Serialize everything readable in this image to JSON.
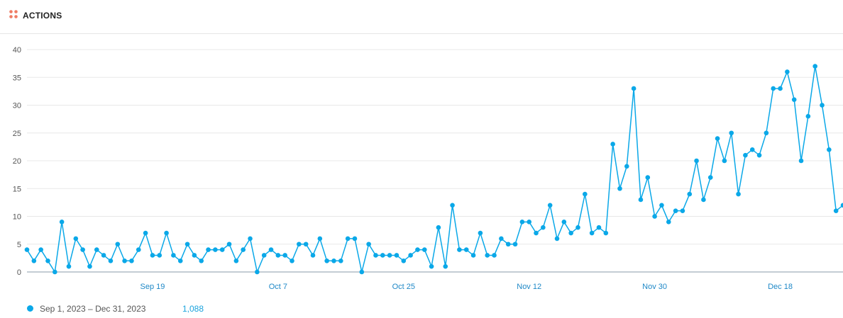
{
  "header": {
    "title": "ACTIONS",
    "icon": "grid-dots-icon",
    "icon_color": "#ef7b63"
  },
  "legend": {
    "label": "Sep 1, 2023 – Dec 31, 2023",
    "total": "1,088",
    "color": "#0aa8e8"
  },
  "chart_data": {
    "type": "line",
    "x_start": "2023-09-01",
    "x_end": "2023-12-31",
    "ylim": [
      0,
      40
    ],
    "yticks": [
      0,
      5,
      10,
      15,
      20,
      25,
      30,
      35,
      40
    ],
    "xticks": [
      {
        "date": "2023-09-19",
        "label": "Sep 19"
      },
      {
        "date": "2023-10-07",
        "label": "Oct 7"
      },
      {
        "date": "2023-10-25",
        "label": "Oct 25"
      },
      {
        "date": "2023-11-12",
        "label": "Nov 12"
      },
      {
        "date": "2023-11-30",
        "label": "Nov 30"
      },
      {
        "date": "2023-12-18",
        "label": "Dec 18"
      }
    ],
    "grid": true,
    "legend_position": "bottom-left",
    "series": [
      {
        "name": "Sep 1, 2023 – Dec 31, 2023",
        "color": "#0aa8e8",
        "values": [
          4,
          2,
          4,
          2,
          0,
          9,
          1,
          6,
          4,
          1,
          4,
          3,
          2,
          5,
          2,
          2,
          4,
          7,
          3,
          3,
          7,
          3,
          2,
          5,
          3,
          2,
          4,
          4,
          4,
          5,
          2,
          4,
          6,
          0,
          3,
          4,
          3,
          3,
          2,
          5,
          5,
          3,
          6,
          2,
          2,
          2,
          6,
          6,
          0,
          5,
          3,
          3,
          3,
          3,
          2,
          3,
          4,
          4,
          1,
          8,
          1,
          12,
          4,
          4,
          3,
          7,
          3,
          3,
          6,
          5,
          5,
          9,
          9,
          7,
          8,
          12,
          6,
          9,
          7,
          8,
          14,
          7,
          8,
          7,
          23,
          15,
          19,
          33,
          13,
          17,
          10,
          12,
          9,
          11,
          11,
          14,
          20,
          13,
          17,
          24,
          20,
          25,
          14,
          21,
          22,
          21,
          25,
          33,
          33,
          36,
          31,
          20,
          28,
          37,
          30,
          22,
          11,
          12
        ]
      }
    ]
  }
}
